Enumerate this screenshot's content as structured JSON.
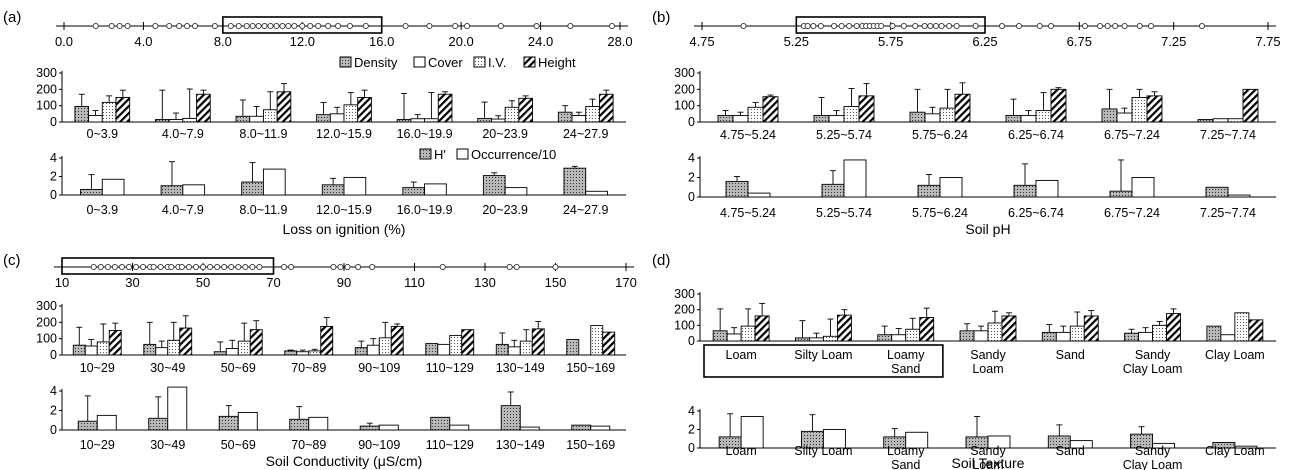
{
  "legend_bars": [
    "Density",
    "Cover",
    "I.V.",
    "Height"
  ],
  "legend_bottom": [
    "H'",
    "Occurrence/10"
  ],
  "chart_data": [
    {
      "panel": "(a)",
      "type": "bar",
      "xlabel": "Loss on ignition (%)",
      "scale_ticks": [
        "0.0",
        "4.0",
        "8.0",
        "12.0",
        "16.0",
        "20.0",
        "24.0",
        "28.0"
      ],
      "scale_range": [
        0,
        28
      ],
      "box_range": [
        8,
        16
      ],
      "points": [
        1.6,
        2.4,
        2.8,
        3.2,
        4.6,
        5.3,
        5.8,
        6.2,
        6.6,
        7.6,
        8.4,
        8.8,
        9.2,
        9.5,
        9.8,
        10.1,
        10.4,
        10.7,
        11.0,
        11.3,
        11.6,
        12.0,
        12.4,
        12.8,
        13.3,
        13.8,
        14.4,
        15.2,
        17.2,
        18.4,
        19.7,
        20.3,
        22.0,
        23.8,
        25.5,
        27.6
      ],
      "categories": [
        "0~3.9",
        "4.0~7.9",
        "8.0~11.9",
        "12.0~15.9",
        "16.0~19.9",
        "20~23.9",
        "24~27.9"
      ],
      "ylim": [
        0,
        300
      ],
      "yticks": [
        "0",
        "100",
        "200",
        "300"
      ],
      "series": [
        {
          "values": [
            95,
            15,
            35,
            45,
            15,
            22,
            60
          ],
          "err": [
            75,
            180,
            100,
            75,
            160,
            100,
            40
          ]
        },
        {
          "values": [
            40,
            15,
            35,
            50,
            20,
            18,
            40
          ],
          "err": [
            30,
            40,
            60,
            40,
            25,
            20,
            20
          ]
        },
        {
          "values": [
            120,
            22,
            75,
            105,
            20,
            90,
            95
          ],
          "err": [
            40,
            180,
            110,
            75,
            160,
            40,
            45
          ]
        },
        {
          "values": [
            150,
            170,
            185,
            150,
            170,
            145,
            170
          ],
          "err": [
            45,
            25,
            50,
            45,
            15,
            15,
            25
          ]
        }
      ],
      "lower": {
        "ylim": [
          0,
          4
        ],
        "yticks": [
          "0",
          "2",
          "4"
        ],
        "series": [
          {
            "values": [
              0.6,
              1.0,
              1.4,
              1.1,
              0.8,
              2.1,
              2.9
            ],
            "err": [
              1.6,
              2.6,
              2.1,
              0.7,
              0.6,
              0.3,
              0.2
            ]
          },
          {
            "values": [
              1.7,
              1.1,
              2.8,
              1.9,
              1.2,
              0.8,
              0.4
            ],
            "err": [
              0,
              0,
              0,
              0,
              0,
              0,
              0
            ]
          }
        ]
      }
    },
    {
      "panel": "(b)",
      "type": "bar",
      "xlabel": "Soil pH",
      "scale_ticks": [
        "4.75",
        "5.25",
        "5.75",
        "6.25",
        "6.75",
        "7.25",
        "7.75"
      ],
      "scale_range": [
        4.75,
        7.75
      ],
      "box_range": [
        5.25,
        6.25
      ],
      "points": [
        4.97,
        5.29,
        5.31,
        5.34,
        5.38,
        5.45,
        5.49,
        5.53,
        5.57,
        5.6,
        5.62,
        5.64,
        5.66,
        5.68,
        5.7,
        5.76,
        5.82,
        5.88,
        5.93,
        5.96,
        5.99,
        6.02,
        6.06,
        6.1,
        6.2,
        6.34,
        6.43,
        6.54,
        6.6,
        6.78,
        6.86,
        6.9,
        6.94,
        6.99,
        7.07,
        7.13,
        7.4
      ],
      "categories": [
        "4.75~5.24",
        "5.25~5.74",
        "5.75~6.24",
        "6.25~6.74",
        "6.75~7.24",
        "7.25~7.74"
      ],
      "ylim": [
        0,
        300
      ],
      "yticks": [
        "0",
        "100",
        "200",
        "300"
      ],
      "series": [
        {
          "values": [
            40,
            40,
            60,
            40,
            80,
            15
          ],
          "err": [
            30,
            110,
            140,
            100,
            120,
            0
          ]
        },
        {
          "values": [
            40,
            40,
            50,
            40,
            55,
            20
          ],
          "err": [
            20,
            30,
            40,
            30,
            30,
            0
          ]
        },
        {
          "values": [
            90,
            95,
            85,
            70,
            150,
            20
          ],
          "err": [
            30,
            110,
            115,
            110,
            50,
            0
          ]
        },
        {
          "values": [
            155,
            160,
            170,
            200,
            160,
            200
          ],
          "err": [
            10,
            75,
            70,
            10,
            25,
            0
          ]
        }
      ],
      "lower": {
        "ylim": [
          0,
          4
        ],
        "yticks": [
          "0",
          "2",
          "4"
        ],
        "series": [
          {
            "values": [
              1.6,
              1.3,
              1.2,
              1.2,
              0.6,
              1.0
            ],
            "err": [
              0.5,
              1.4,
              1.1,
              2.2,
              3.2,
              0
            ]
          },
          {
            "values": [
              0.4,
              3.8,
              2.0,
              1.7,
              2.0,
              0.2
            ],
            "err": [
              0,
              0,
              0,
              0,
              0,
              0
            ]
          }
        ]
      }
    },
    {
      "panel": "(c)",
      "type": "bar",
      "xlabel": "Soil Conductivity (μS/cm)",
      "scale_ticks": [
        "10",
        "30",
        "50",
        "70",
        "90",
        "110",
        "130",
        "150",
        "170"
      ],
      "scale_range": [
        10,
        170
      ],
      "box_range": [
        10,
        70
      ],
      "points": [
        19,
        21,
        23,
        25,
        27,
        29,
        31,
        33,
        35,
        36,
        38,
        40,
        41,
        43,
        44,
        46,
        48,
        50,
        52,
        54,
        56,
        58,
        60,
        62,
        64,
        66,
        73,
        75,
        87,
        89,
        91,
        94,
        98,
        118,
        137,
        139,
        150
      ],
      "categories": [
        "10~29",
        "30~49",
        "50~69",
        "70~89",
        "90~109",
        "110~129",
        "130~149",
        "150~169"
      ],
      "ylim": [
        0,
        300
      ],
      "yticks": [
        "0",
        "100",
        "200",
        "300"
      ],
      "series": [
        {
          "values": [
            60,
            65,
            20,
            25,
            45,
            70,
            65,
            95
          ],
          "err": [
            110,
            135,
            60,
            5,
            40,
            0,
            70,
            0
          ]
        },
        {
          "values": [
            55,
            45,
            40,
            20,
            60,
            65,
            50,
            0
          ],
          "err": [
            40,
            40,
            50,
            10,
            40,
            0,
            40,
            0
          ]
        },
        {
          "values": [
            80,
            90,
            85,
            25,
            105,
            120,
            85,
            180
          ],
          "err": [
            110,
            110,
            110,
            10,
            95,
            0,
            70,
            0
          ]
        },
        {
          "values": [
            150,
            165,
            155,
            175,
            175,
            155,
            160,
            140
          ],
          "err": [
            45,
            75,
            55,
            55,
            15,
            0,
            45,
            0
          ]
        }
      ],
      "lower": {
        "ylim": [
          0,
          4
        ],
        "yticks": [
          "0",
          "2",
          "4"
        ],
        "series": [
          {
            "values": [
              0.9,
              1.2,
              1.4,
              1.1,
              0.4,
              1.3,
              2.5,
              0.5
            ],
            "err": [
              2.6,
              2.2,
              1.1,
              1.3,
              0.3,
              0,
              1.4,
              0
            ]
          },
          {
            "values": [
              1.5,
              4.4,
              1.8,
              1.3,
              0.5,
              0.5,
              0.3,
              0.4
            ],
            "err": [
              0,
              0,
              0,
              0,
              0,
              0,
              0,
              0
            ]
          }
        ]
      }
    },
    {
      "panel": "(d)",
      "type": "bar",
      "xlabel": "Soil Texture",
      "categories": [
        "Loam",
        "Silty Loam",
        "Loamy Sand",
        "Sandy Loam",
        "Sand",
        "Sandy Clay Loam",
        "Clay Loam"
      ],
      "categories_upper": [
        [
          "Loam"
        ],
        [
          "Silty Loam"
        ],
        [
          "Loamy",
          "Sand"
        ],
        [
          "Sandy",
          "Loam"
        ],
        [
          "Sand"
        ],
        [
          "Sandy",
          "Clay Loam"
        ],
        [
          "Clay Loam"
        ]
      ],
      "boxed_categories": [
        0,
        2
      ],
      "ylim": [
        0,
        300
      ],
      "yticks": [
        "0",
        "100",
        "200",
        "300"
      ],
      "series": [
        {
          "values": [
            65,
            20,
            40,
            65,
            55,
            50,
            95
          ],
          "err": [
            140,
            110,
            55,
            45,
            50,
            25,
            0
          ]
        },
        {
          "values": [
            45,
            20,
            40,
            65,
            55,
            55,
            40
          ],
          "err": [
            40,
            30,
            40,
            30,
            40,
            30,
            0
          ]
        },
        {
          "values": [
            95,
            30,
            75,
            115,
            95,
            100,
            180
          ],
          "err": [
            110,
            110,
            70,
            75,
            90,
            25,
            0
          ]
        },
        {
          "values": [
            160,
            165,
            150,
            160,
            160,
            175,
            135
          ],
          "err": [
            80,
            35,
            60,
            20,
            35,
            30,
            0
          ]
        }
      ],
      "lower": {
        "ylim": [
          0,
          4
        ],
        "yticks": [
          "0",
          "2",
          "4"
        ],
        "series": [
          {
            "values": [
              1.2,
              1.8,
              1.2,
              1.2,
              1.3,
              1.5,
              0.6
            ],
            "err": [
              2.5,
              1.8,
              0.9,
              2.2,
              1.2,
              0.8,
              0
            ]
          },
          {
            "values": [
              3.4,
              2.0,
              1.7,
              1.3,
              0.8,
              0.5,
              0.2
            ],
            "err": [
              0,
              0,
              0,
              0,
              0,
              0,
              0
            ]
          }
        ]
      }
    }
  ]
}
